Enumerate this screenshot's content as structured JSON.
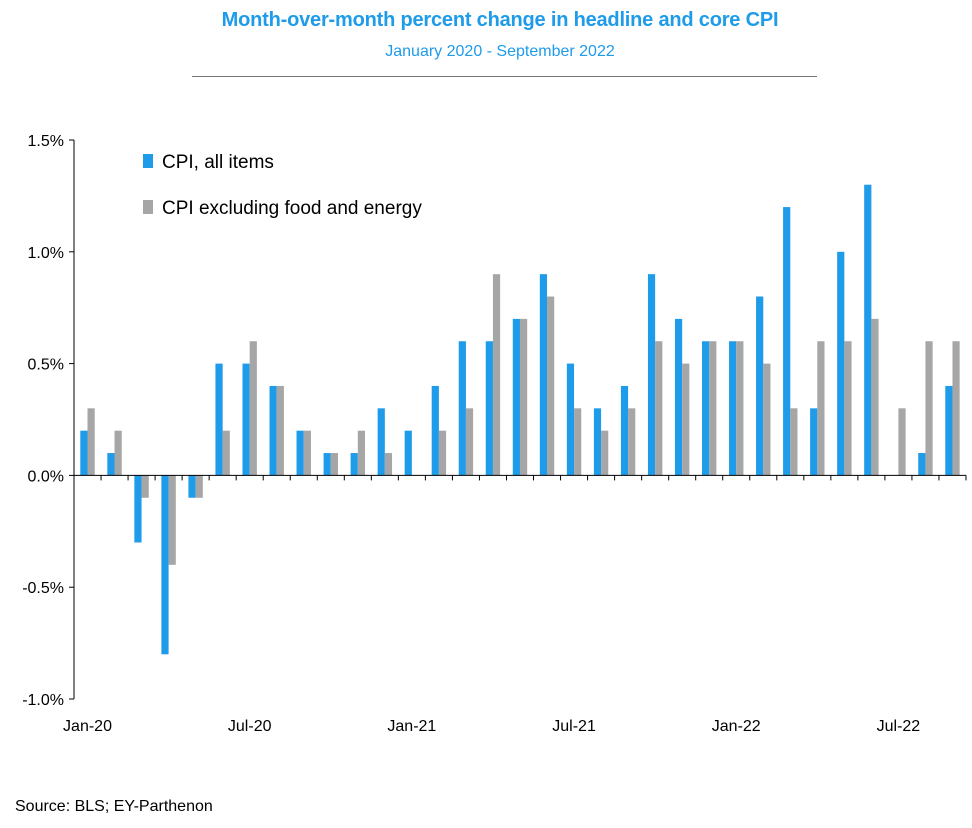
{
  "title": "Month-over-month percent change in headline and core CPI",
  "subtitle": "January 2020 - September 2022",
  "source": "Source: BLS; EY-Parthenon",
  "colors": {
    "headline": "#1e9be9",
    "core": "#a6a6a6",
    "title": "#1e9be9",
    "axis": "#000000"
  },
  "chart_data": {
    "type": "bar",
    "title": "Month-over-month percent change in headline and core CPI",
    "subtitle": "January 2020 - September 2022",
    "categories": [
      "Jan-20",
      "Feb-20",
      "Mar-20",
      "Apr-20",
      "May-20",
      "Jun-20",
      "Jul-20",
      "Aug-20",
      "Sep-20",
      "Oct-20",
      "Nov-20",
      "Dec-20",
      "Jan-21",
      "Feb-21",
      "Mar-21",
      "Apr-21",
      "May-21",
      "Jun-21",
      "Jul-21",
      "Aug-21",
      "Sep-21",
      "Oct-21",
      "Nov-21",
      "Dec-21",
      "Jan-22",
      "Feb-22",
      "Mar-22",
      "Apr-22",
      "May-22",
      "Jun-22",
      "Jul-22",
      "Aug-22",
      "Sep-22"
    ],
    "x_tick_labels": [
      "Jan-20",
      "Jul-20",
      "Jan-21",
      "Jul-21",
      "Jan-22",
      "Jul-22"
    ],
    "x_tick_positions": [
      0,
      6,
      12,
      18,
      24,
      30
    ],
    "series": [
      {
        "name": "CPI, all items",
        "color": "#1e9be9",
        "values": [
          0.2,
          0.1,
          -0.3,
          -0.8,
          -0.1,
          0.5,
          0.5,
          0.4,
          0.2,
          0.1,
          0.1,
          0.3,
          0.2,
          0.4,
          0.6,
          0.6,
          0.7,
          0.9,
          0.5,
          0.3,
          0.4,
          0.9,
          0.7,
          0.6,
          0.6,
          0.8,
          1.2,
          0.3,
          1.0,
          1.3,
          0.0,
          0.1,
          0.4
        ]
      },
      {
        "name": "CPI excluding food and energy",
        "color": "#a6a6a6",
        "values": [
          0.3,
          0.2,
          -0.1,
          -0.4,
          -0.1,
          0.2,
          0.6,
          0.4,
          0.2,
          0.1,
          0.2,
          0.1,
          0.0,
          0.2,
          0.3,
          0.9,
          0.7,
          0.8,
          0.3,
          0.2,
          0.3,
          0.6,
          0.5,
          0.6,
          0.6,
          0.5,
          0.3,
          0.6,
          0.6,
          0.7,
          0.3,
          0.6,
          0.6
        ]
      }
    ],
    "y_tick_labels": [
      "1.5%",
      "1.0%",
      "0.5%",
      "0.0%",
      "-0.5%",
      "-1.0%"
    ],
    "y_ticks": [
      1.5,
      1.0,
      0.5,
      0.0,
      -0.5,
      -1.0
    ],
    "ylim": [
      -1.0,
      1.5
    ],
    "xlabel": "",
    "ylabel": "",
    "grid": false,
    "legend": "top-left"
  }
}
